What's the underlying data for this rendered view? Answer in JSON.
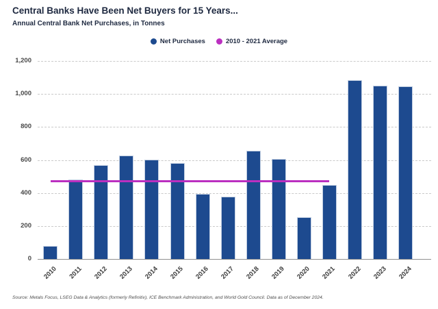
{
  "header": {
    "title": "Central Banks Have Been Net Buyers for 15 Years...",
    "subtitle": "Annual Central Bank Net Purchases, in Tonnes"
  },
  "legend": [
    {
      "label": "Net Purchases",
      "color": "#1d4a8f"
    },
    {
      "label": "2010 - 2021 Average",
      "color": "#bb2fc0"
    }
  ],
  "chart_data": {
    "type": "bar",
    "title": "Central Banks Have Been Net Buyers for 15 Years...",
    "subtitle": "Annual Central Bank Net Purchases, in Tonnes",
    "categories": [
      "2010",
      "2011",
      "2012",
      "2013",
      "2014",
      "2015",
      "2016",
      "2017",
      "2018",
      "2019",
      "2020",
      "2021",
      "2022",
      "2023",
      "2024"
    ],
    "series": [
      {
        "name": "Net Purchases",
        "values": [
          79,
          481,
          569,
          629,
          601,
          580,
          395,
          379,
          656,
          605,
          255,
          450,
          1082,
          1051,
          1045
        ]
      }
    ],
    "average_line": {
      "name": "2010 - 2021 Average",
      "value": 473,
      "span_start_category": "2010",
      "span_end_category": "2021"
    },
    "xlabel": "",
    "ylabel": "",
    "ylim": [
      0,
      1200
    ],
    "yticks": [
      0,
      200,
      400,
      600,
      800,
      1000,
      1200
    ],
    "ytick_labels": [
      "0",
      "200",
      "400",
      "600",
      "800",
      "1,000",
      "1,200"
    ],
    "grid": "horizontal-dashed",
    "legend_position": "top-center",
    "colors": {
      "bar": "#1d4a8f",
      "average_line": "#bb2fc0"
    }
  },
  "footer": {
    "source": "Source: Metals Focus, LSEG Data & Analytics (formerly Refinitiv), ICE Benchmark Administration, and World Gold Council. Data as of December 2024."
  }
}
